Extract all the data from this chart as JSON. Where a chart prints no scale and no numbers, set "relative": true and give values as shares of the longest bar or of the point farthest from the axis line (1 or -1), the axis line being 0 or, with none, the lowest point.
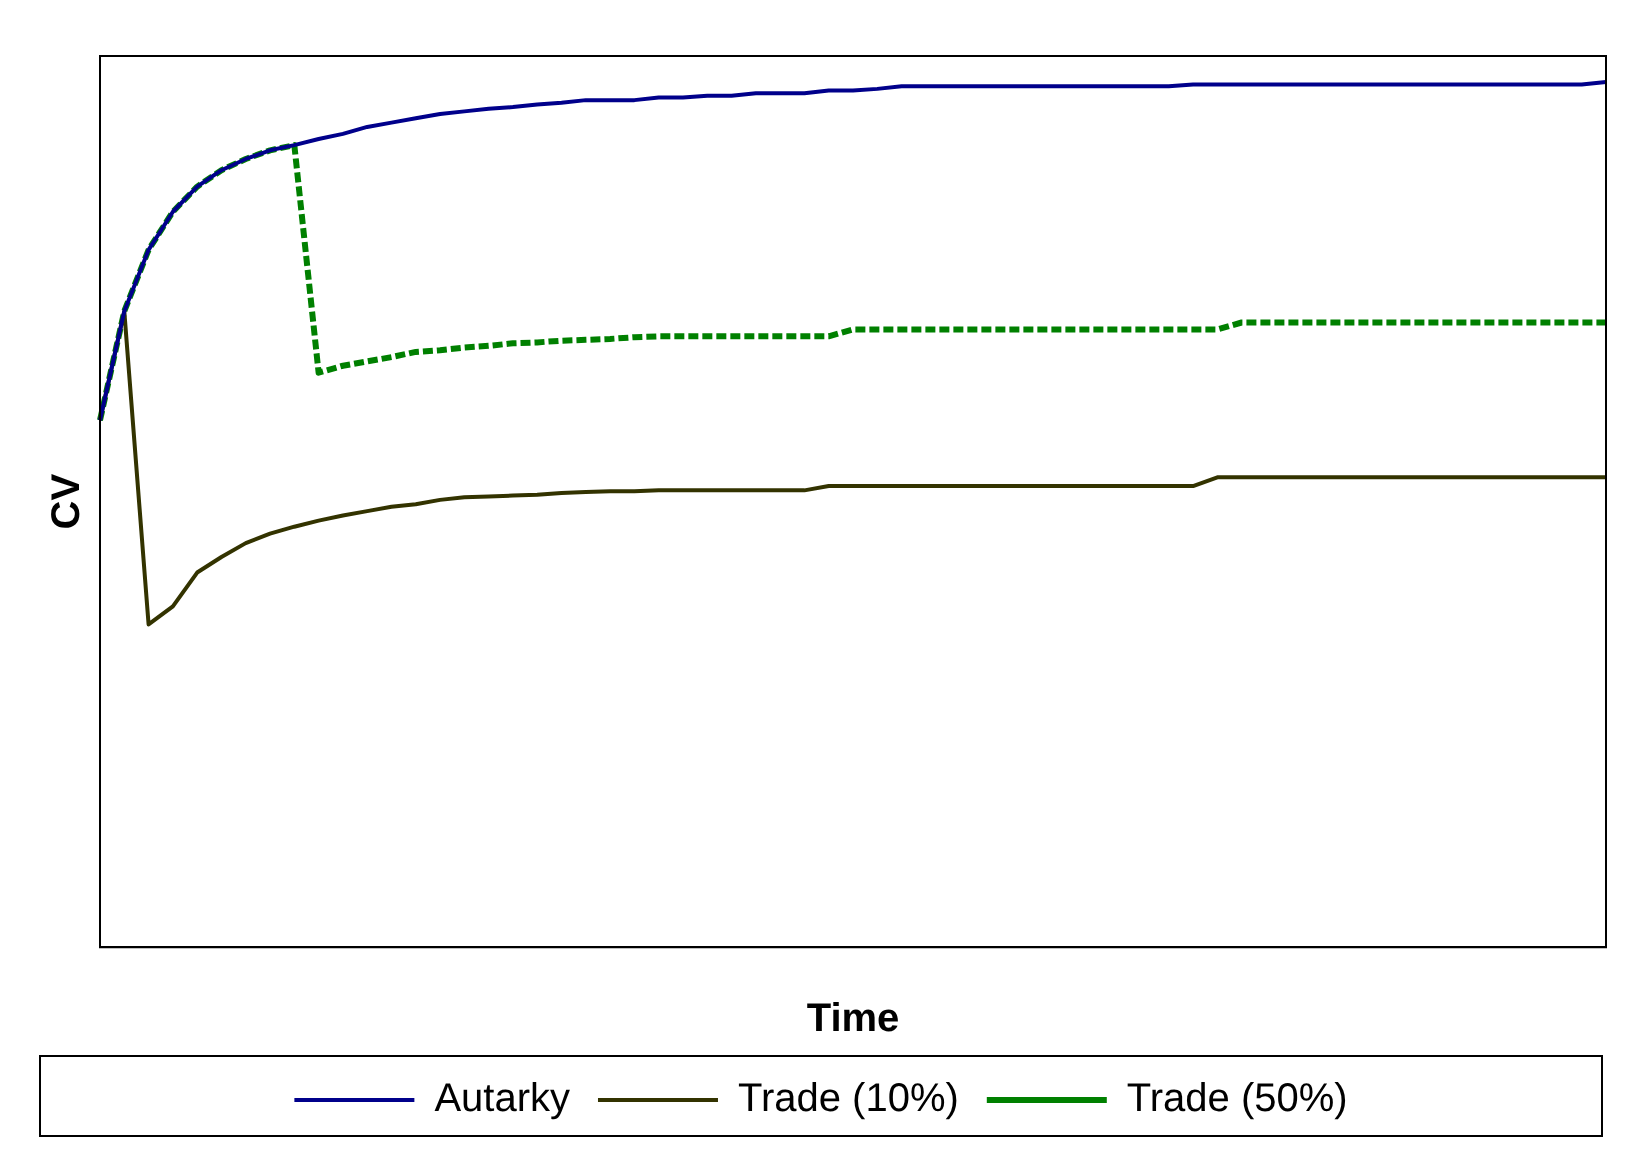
{
  "chart_data": {
    "type": "line",
    "xlabel": "Time",
    "ylabel": "CV",
    "relative": true,
    "legend": "bottom",
    "grid": false,
    "marker": "none",
    "line_style": "solid",
    "categories": [
      null,
      null,
      null,
      null,
      null,
      null,
      null,
      null,
      null,
      null,
      null,
      null,
      null,
      null,
      null,
      null,
      null,
      null,
      null,
      null,
      null,
      null,
      null,
      null,
      null,
      null,
      null,
      null,
      null,
      null,
      null,
      null,
      null,
      null,
      null,
      null,
      null,
      null,
      null,
      null,
      null,
      null,
      null,
      null,
      null,
      null,
      null,
      null,
      null,
      null,
      null,
      null,
      null,
      null,
      null,
      null,
      null,
      null,
      null,
      null,
      null,
      null,
      null
    ],
    "series": [
      {
        "name": "Autarky",
        "color": "#00008b",
        "values": [
          0.609,
          0.735,
          0.806,
          0.85,
          0.879,
          0.898,
          0.911,
          0.921,
          0.927,
          0.934,
          0.94,
          0.948,
          0.953,
          0.958,
          0.963,
          0.966,
          0.969,
          0.971,
          0.974,
          0.976,
          0.979,
          0.979,
          0.979,
          0.982,
          0.982,
          0.984,
          0.984,
          0.987,
          0.987,
          0.987,
          0.99,
          0.99,
          0.992,
          0.995,
          0.995,
          0.995,
          0.995,
          0.995,
          0.995,
          0.995,
          0.995,
          0.995,
          0.995,
          0.995,
          0.995,
          0.997,
          0.997,
          0.997,
          0.997,
          0.997,
          0.997,
          0.997,
          0.997,
          0.997,
          0.997,
          0.997,
          0.997,
          0.997,
          0.997,
          0.997,
          0.997,
          0.997,
          1
        ]
      },
      {
        "name": "Trade (10%)",
        "color": "#333300",
        "values": [
          0.609,
          0.735,
          0.373,
          0.394,
          0.433,
          0.451,
          0.467,
          0.478,
          0.486,
          0.493,
          0.499,
          0.504,
          0.509,
          0.512,
          0.517,
          0.52,
          0.521,
          0.522,
          0.523,
          0.525,
          0.526,
          0.527,
          0.527,
          0.528,
          0.528,
          0.528,
          0.528,
          0.528,
          0.528,
          0.528,
          0.533,
          0.533,
          0.533,
          0.533,
          0.533,
          0.533,
          0.533,
          0.533,
          0.533,
          0.533,
          0.533,
          0.533,
          0.533,
          0.533,
          0.533,
          0.533,
          0.543,
          0.543,
          0.543,
          0.543,
          0.543,
          0.543,
          0.543,
          0.543,
          0.543,
          0.543,
          0.543,
          0.543,
          0.543,
          0.543,
          0.543,
          0.543,
          0.543
        ]
      },
      {
        "name": "Trade (50%)",
        "color": "#008000",
        "line_style": "dotted",
        "values": [
          0.609,
          0.735,
          0.806,
          0.85,
          0.879,
          0.898,
          0.911,
          0.921,
          0.927,
          0.664,
          0.672,
          0.677,
          0.682,
          0.688,
          0.69,
          0.693,
          0.695,
          0.698,
          0.699,
          0.701,
          0.702,
          0.703,
          0.705,
          0.706,
          0.706,
          0.706,
          0.706,
          0.706,
          0.706,
          0.706,
          0.706,
          0.714,
          0.714,
          0.714,
          0.714,
          0.714,
          0.714,
          0.714,
          0.714,
          0.714,
          0.714,
          0.714,
          0.714,
          0.714,
          0.714,
          0.714,
          0.714,
          0.722,
          0.722,
          0.722,
          0.722,
          0.722,
          0.722,
          0.722,
          0.722,
          0.722,
          0.722,
          0.722,
          0.722,
          0.722,
          0.722,
          0.722,
          0.722
        ]
      }
    ]
  }
}
